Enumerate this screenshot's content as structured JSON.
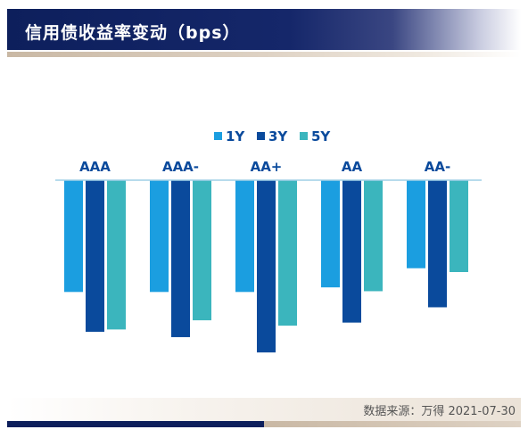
{
  "header": {
    "title": "信用债收益率变动（bps）"
  },
  "footer": {
    "source": "数据来源：万得 2021-07-30"
  },
  "colors": {
    "1Y": "#1b9ee0",
    "3Y": "#0a4a9c",
    "5Y": "#3bb5bd",
    "axis": "#9fcfe6",
    "label": "#0a4a9c"
  },
  "chart_data": {
    "type": "bar",
    "title": "信用债收益率变动（bps）",
    "categories": [
      "AAA",
      "AAA-",
      "AA+",
      "AA",
      "AA-"
    ],
    "series": [
      {
        "name": "1Y",
        "values": [
          -14.6,
          -14.6,
          -14.6,
          -14.0,
          -11.5
        ]
      },
      {
        "name": "3Y",
        "values": [
          -19.8,
          -20.5,
          -22.5,
          -18.6,
          -16.6
        ]
      },
      {
        "name": "5Y",
        "values": [
          -19.5,
          -18.3,
          -19.0,
          -14.5,
          -12.0
        ]
      }
    ],
    "ylim": [
      -24,
      0
    ],
    "grid": false,
    "legend_position": "top-center"
  }
}
